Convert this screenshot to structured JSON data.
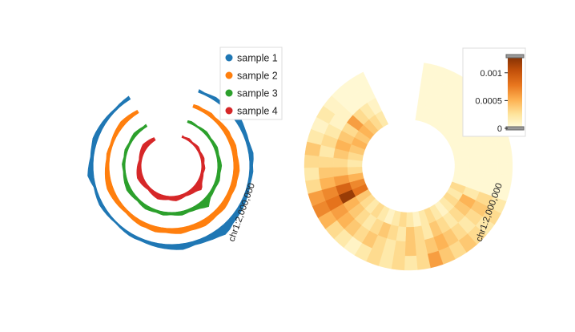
{
  "chart_data": [
    {
      "type": "area",
      "chart_kind": "circular tracks",
      "title": "",
      "chromosome_label": "chr1:2,000,000",
      "legend": {
        "placement": "top-right"
      },
      "series": [
        {
          "name": "sample 1",
          "color": "#1f77b4",
          "values": [
            0.3,
            0.2,
            0.25,
            0.35,
            0.3,
            0.2,
            0.4,
            0.5,
            0.6,
            0.5,
            0.4,
            0.35,
            0.3,
            0.35,
            0.45,
            0.4,
            0.3,
            0.35,
            0.3,
            0.25,
            0.3,
            0.35,
            0.4,
            0.45,
            0.5,
            0.55,
            0.6,
            0.8,
            0.9,
            0.7,
            0.6,
            0.5,
            0.45,
            0.4,
            0.5,
            0.6,
            0.55,
            0.5,
            0.45,
            0.4,
            0.35,
            0.3,
            0.25,
            0.3,
            0.3,
            0.25,
            0.2,
            0.15,
            0.2,
            0.25,
            0.3,
            0.35,
            0.3,
            0.25,
            0.2,
            0.4,
            0.6,
            0.5,
            0.4,
            0.3,
            0.35,
            0.4,
            0.5,
            0.45,
            0.4,
            0.35,
            0.3,
            0.25,
            0.2,
            0.25,
            0.3,
            0.35
          ]
        },
        {
          "name": "sample 2",
          "color": "#ff7f0e",
          "values": [
            0.3,
            0.35,
            0.3,
            0.35,
            0.4,
            0.3,
            0.35,
            0.4,
            0.45,
            0.5,
            0.45,
            0.5,
            0.55,
            0.5,
            0.45,
            0.5,
            0.55,
            0.6,
            0.55,
            0.5,
            0.55,
            0.5,
            0.45,
            0.5,
            0.55,
            0.6,
            0.55,
            0.5,
            0.55,
            0.6,
            0.65,
            0.6,
            0.55,
            0.5,
            0.55,
            0.6,
            0.55,
            0.5,
            0.45,
            0.5,
            0.55,
            0.5,
            0.45,
            0.5,
            0.45,
            0.4,
            0.35,
            0.3,
            0.35,
            0.4,
            0.45,
            0.5,
            0.55,
            0.6,
            0.55,
            0.5,
            0.45,
            0.4,
            0.35,
            0.3,
            0.35,
            0.3,
            0.25,
            0.3,
            0.35,
            0.4,
            0.45,
            0.5,
            0.45,
            0.4,
            0.35,
            0.3
          ]
        },
        {
          "name": "sample 3",
          "color": "#2ca02c",
          "values": [
            0.2,
            0.25,
            0.2,
            0.15,
            0.2,
            0.25,
            0.3,
            0.25,
            0.2,
            0.25,
            0.3,
            0.35,
            0.3,
            0.25,
            0.3,
            0.35,
            0.4,
            0.35,
            0.3,
            0.35,
            0.4,
            0.35,
            0.3,
            0.3,
            0.35,
            0.4,
            0.6,
            0.9,
            0.7,
            0.5,
            0.4,
            0.35,
            0.3,
            0.35,
            0.4,
            0.35,
            0.3,
            0.25,
            0.3,
            0.35,
            0.3,
            0.25,
            0.3,
            0.35,
            0.4,
            0.35,
            0.3,
            0.25,
            0.3,
            0.35,
            0.4,
            0.45,
            0.4,
            0.35,
            0.3,
            0.25,
            0.2,
            0.25,
            0.3,
            0.25,
            0.2,
            0.25,
            0.3,
            0.25,
            0.2,
            0.25,
            0.3,
            0.35,
            0.3,
            0.25,
            0.2,
            0.25
          ]
        },
        {
          "name": "sample 4",
          "color": "#d62728",
          "values": [
            0.2,
            0.15,
            0.2,
            0.25,
            0.2,
            0.15,
            0.2,
            0.25,
            0.3,
            0.25,
            0.2,
            0.25,
            0.3,
            0.35,
            0.3,
            0.25,
            0.3,
            0.35,
            0.3,
            0.25,
            0.3,
            0.35,
            0.4,
            0.5,
            0.7,
            0.8,
            0.6,
            0.5,
            0.45,
            0.4,
            0.35,
            0.3,
            0.35,
            0.4,
            0.45,
            0.5,
            0.45,
            0.4,
            0.35,
            0.4,
            0.45,
            0.5,
            0.55,
            0.5,
            0.45,
            0.4,
            0.35,
            0.3,
            0.35,
            0.4,
            0.45,
            0.5,
            0.55,
            0.6,
            0.55,
            0.5,
            0.45,
            0.4,
            0.35,
            0.3,
            0.25,
            0.3,
            0.35,
            0.4,
            0.45,
            0.5,
            0.55,
            0.5,
            0.45,
            0.4,
            0.35,
            0.3
          ]
        }
      ]
    },
    {
      "type": "heatmap",
      "chart_kind": "circular heatmap",
      "title": "",
      "chromosome_label": "chr1:2,000,000",
      "colorbar": {
        "ticks": [
          "0",
          "0.0005",
          "0.001"
        ],
        "tick_values": [
          0,
          0.0005,
          0.001
        ],
        "range": [
          0,
          0.0013
        ],
        "colors": [
          "#fffde0",
          "#fee39a",
          "#fdb050",
          "#e8761e",
          "#c2500a",
          "#7f2f04"
        ],
        "placement": "top-right"
      },
      "rows": 4,
      "values": [
        [
          5e-05,
          5e-05,
          5e-05,
          5e-05,
          5e-05,
          5e-05,
          5e-05,
          5e-05,
          5e-05,
          5e-05,
          5e-05,
          5e-05,
          5e-05,
          5e-05,
          0.0002,
          0.0003,
          0.0002,
          0.0003,
          0.0004,
          0.0003,
          0.0004,
          0.0006,
          0.0003,
          0.0002,
          0.0003,
          0.0002,
          0.0003,
          0.0002,
          0.0001,
          0.0002,
          0.0003,
          0.0005,
          0.0007,
          0.0006,
          0.0003,
          0.0002,
          0.0003,
          0.0004,
          0.0002,
          0.0001,
          0.0002,
          0.0001,
          5e-05,
          5e-05,
          5e-05
        ],
        [
          5e-05,
          5e-05,
          5e-05,
          5e-05,
          5e-05,
          5e-05,
          5e-05,
          5e-05,
          5e-05,
          5e-05,
          5e-05,
          5e-05,
          5e-05,
          5e-05,
          0.0003,
          0.0004,
          0.0003,
          0.0002,
          0.0003,
          0.0004,
          0.0005,
          0.0004,
          0.0003,
          0.0004,
          0.0003,
          0.0002,
          0.0003,
          0.0004,
          0.0003,
          0.0004,
          0.0005,
          0.0006,
          0.0008,
          0.0007,
          0.0005,
          0.0004,
          0.0003,
          0.0002,
          0.0003,
          0.0002,
          0.0001,
          0.0001,
          5e-05,
          5e-05,
          5e-05
        ],
        [
          5e-05,
          5e-05,
          5e-05,
          5e-05,
          5e-05,
          5e-05,
          5e-05,
          5e-05,
          5e-05,
          5e-05,
          5e-05,
          5e-05,
          5e-05,
          5e-05,
          0.0002,
          0.0005,
          0.0004,
          0.0003,
          0.0002,
          0.0003,
          0.0004,
          0.0002,
          0.0003,
          0.0004,
          0.0002,
          0.0003,
          0.0004,
          0.0003,
          0.0002,
          0.0003,
          0.0004,
          0.0005,
          0.0012,
          0.0009,
          0.0006,
          0.0004,
          0.0003,
          0.0004,
          0.0005,
          0.0004,
          0.0003,
          0.0006,
          0.0003,
          0.0002,
          0.0001
        ],
        [
          5e-05,
          5e-05,
          5e-05,
          5e-05,
          5e-05,
          5e-05,
          5e-05,
          5e-05,
          5e-05,
          5e-05,
          5e-05,
          5e-05,
          5e-05,
          5e-05,
          0.0003,
          0.0002,
          0.0003,
          0.0002,
          0.0001,
          0.0002,
          0.0003,
          0.0002,
          0.0001,
          0.0002,
          0.0003,
          0.0002,
          0.0001,
          0.0002,
          0.0003,
          0.0002,
          0.0003,
          0.0004,
          0.0008,
          0.0007,
          0.0005,
          0.0003,
          0.0002,
          0.0003,
          0.0004,
          0.0005,
          0.0004,
          0.0005,
          0.0004,
          0.0003,
          0.0002
        ]
      ]
    }
  ]
}
